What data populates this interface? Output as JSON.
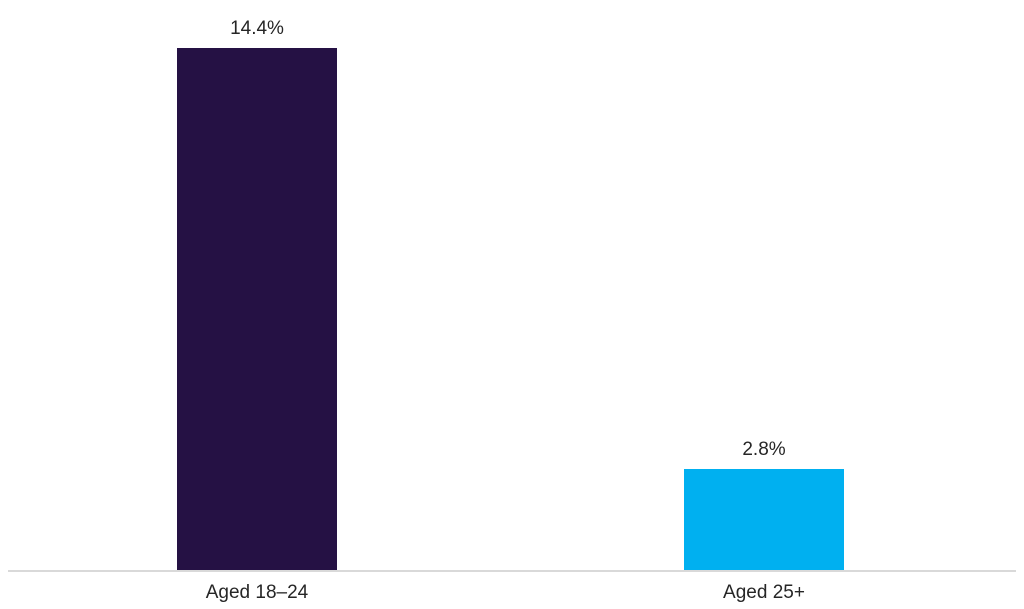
{
  "chart_data": {
    "type": "bar",
    "title": "",
    "xlabel": "",
    "ylabel": "",
    "categories": [
      "Aged 18–24",
      "Aged 25+"
    ],
    "values": [
      14.4,
      2.8
    ],
    "data_labels": [
      "14.4%",
      "2.8%"
    ],
    "series_colors": [
      "#251144",
      "#00B0F0"
    ],
    "ylim": [
      0,
      14.4
    ],
    "grid": false,
    "legend": "none",
    "axis_line_color": "#D9D9D9",
    "label_text_color": "#262626",
    "background_color": "#FFFFFF"
  }
}
